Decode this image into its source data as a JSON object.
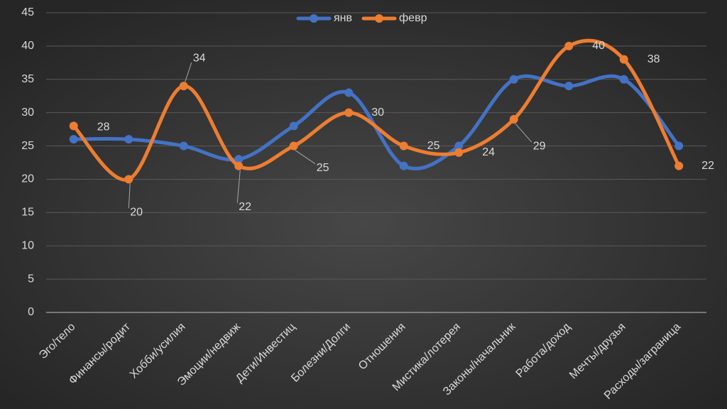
{
  "chart_data": {
    "type": "line",
    "categories": [
      "Эго/тело",
      "Финансы/родит",
      "Хобби/усилия",
      "Эмоции/недвиж",
      "Дети/Инвестиц",
      "Болезни/Долги",
      "Отношения",
      "Мистика/лотерея",
      "Законы/начальник",
      "Работа/доход",
      "Мечты/друзья",
      "Расходы/заграница"
    ],
    "series": [
      {
        "name": "янв",
        "color": "#4472c4",
        "values": [
          26,
          26,
          25,
          23,
          28,
          33,
          22,
          25,
          35,
          34,
          35,
          25
        ]
      },
      {
        "name": "февр",
        "color": "#ed7d31",
        "values": [
          28,
          20,
          34,
          22,
          25,
          30,
          25,
          24,
          29,
          40,
          38,
          22
        ],
        "data_labels": true
      }
    ],
    "ylim": [
      0,
      45
    ],
    "yticks": [
      0,
      5,
      10,
      15,
      20,
      25,
      30,
      35,
      40,
      45
    ],
    "grid": true,
    "smooth": true,
    "legend": "top"
  }
}
